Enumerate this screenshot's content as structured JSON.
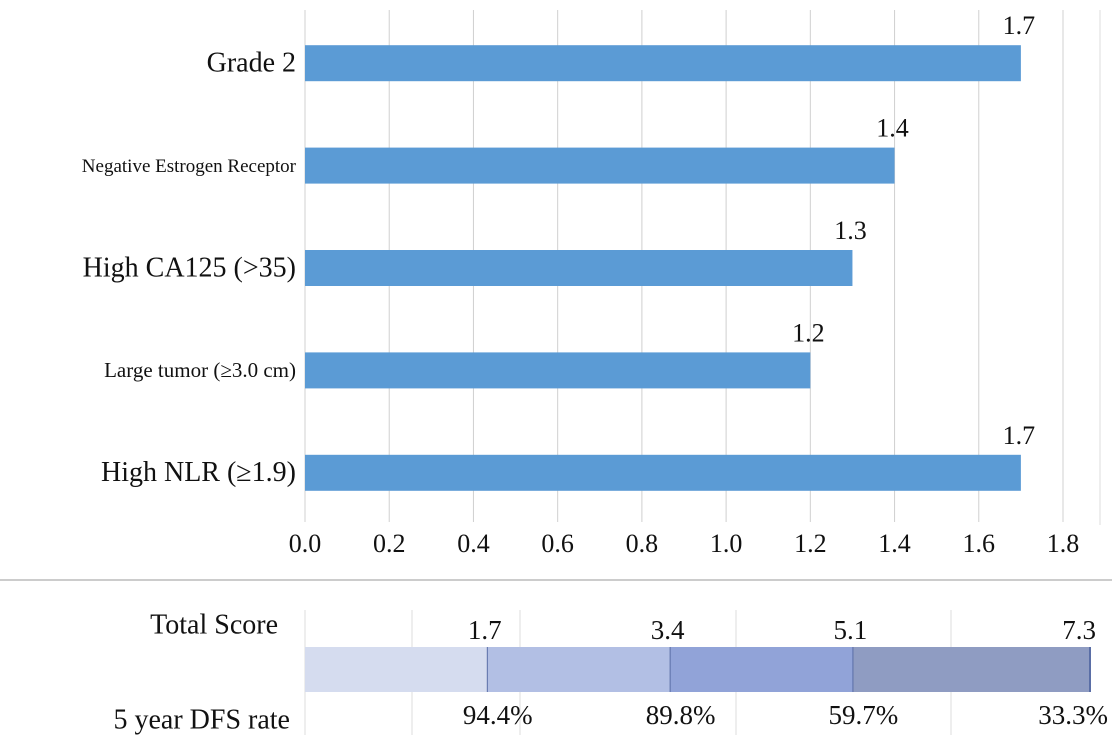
{
  "chart_data": [
    {
      "type": "bar",
      "orientation": "horizontal",
      "categories": [
        "Grade 2",
        "Negative Estrogen Receptor",
        "High CA125 (>35)",
        "Large tumor (≥3.0 cm)",
        "High NLR (≥1.9)"
      ],
      "values": [
        1.7,
        1.4,
        1.3,
        1.2,
        1.7
      ],
      "color": "#5b9bd5",
      "xlim": [
        0,
        1.8
      ],
      "xticks": [
        {
          "value": 0,
          "label": "0.0"
        },
        0.2,
        0.4,
        0.6,
        0.8,
        {
          "value": 1,
          "label": "1.0"
        },
        1.2,
        1.4,
        1.6,
        1.8
      ],
      "grid": true
    },
    {
      "type": "segmented-scale",
      "xlim": [
        0,
        7.3
      ],
      "series": [
        {
          "name": "Total Score",
          "values": [
            1.7,
            3.4,
            5.1,
            7.3
          ],
          "colors": [
            "#d5dcef",
            "#b2bfe4",
            "#91a3d8",
            "#8f9cc2"
          ]
        },
        {
          "name": "5 year DFS rate",
          "values": [
            94.4,
            89.8,
            59.7,
            33.3
          ],
          "value_labels": [
            "94.4%",
            "89.8%",
            "59.7%",
            "33.3%"
          ]
        }
      ]
    }
  ]
}
